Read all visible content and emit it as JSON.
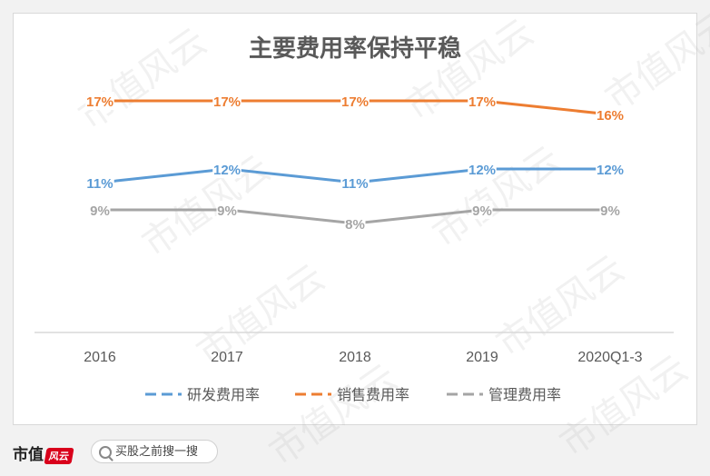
{
  "chart_data": {
    "type": "line",
    "title": "主要费用率保持平稳",
    "categories": [
      "2016",
      "2017",
      "2018",
      "2019",
      "2020Q1-3"
    ],
    "ylim": [
      0,
      20
    ],
    "grid": false,
    "legend_position": "bottom",
    "series": [
      {
        "name": "研发费用率",
        "color": "#5b9bd5",
        "values": [
          11,
          12,
          11,
          12,
          12
        ],
        "labels": [
          "11%",
          "12%",
          "11%",
          "12%",
          "12%"
        ]
      },
      {
        "name": "销售费用率",
        "color": "#ed7d31",
        "values": [
          17,
          17,
          17,
          17,
          16
        ],
        "labels": [
          "17%",
          "17%",
          "17%",
          "17%",
          "16%"
        ]
      },
      {
        "name": "管理费用率",
        "color": "#a5a5a5",
        "values": [
          9,
          9,
          8,
          9,
          9
        ],
        "labels": [
          "9%",
          "9%",
          "8%",
          "9%",
          "9%"
        ]
      }
    ]
  },
  "watermark": "市值风云",
  "footer": {
    "brand": "市值",
    "brand_badge": "风云",
    "search_text": "买股之前搜一搜"
  }
}
